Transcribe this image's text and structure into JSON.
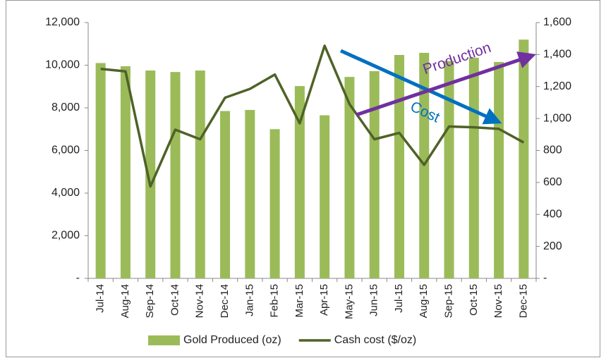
{
  "chart_data": {
    "type": "bar",
    "categories": [
      "Jul-14",
      "Aug-14",
      "Sep-14",
      "Oct-14",
      "Nov-14",
      "Dec-14",
      "Jan-15",
      "Feb-15",
      "Mar-15",
      "Apr-15",
      "May-15",
      "Jun-15",
      "Jul-15",
      "Aug-15",
      "Sep-15",
      "Oct-15",
      "Nov-15",
      "Dec-15"
    ],
    "series": [
      {
        "name": "Gold Produced (oz)",
        "type": "bar",
        "color": "#9bbb59",
        "values": [
          10100,
          9950,
          9750,
          9680,
          9750,
          7850,
          7900,
          7000,
          9020,
          7650,
          9450,
          9720,
          10480,
          10580,
          10200,
          10350,
          10150,
          11200
        ]
      },
      {
        "name": "Cash cost ($/oz)",
        "type": "line",
        "axis": "y2",
        "color": "#4f6228",
        "values": [
          1310,
          1295,
          575,
          930,
          870,
          1130,
          1185,
          1275,
          970,
          1455,
          1090,
          870,
          910,
          710,
          950,
          945,
          935,
          850
        ]
      }
    ],
    "ylim": [
      0,
      12000
    ],
    "yticks": [
      {
        "value": 0,
        "label": "-"
      },
      {
        "value": 2000,
        "label": "2,000"
      },
      {
        "value": 4000,
        "label": "4,000"
      },
      {
        "value": 6000,
        "label": "6,000"
      },
      {
        "value": 8000,
        "label": "8,000"
      },
      {
        "value": 10000,
        "label": "10,000"
      },
      {
        "value": 12000,
        "label": "12,000"
      }
    ],
    "y2lim": [
      0,
      1600
    ],
    "y2ticks": [
      {
        "value": 0,
        "label": "-"
      },
      200,
      400,
      600,
      800,
      {
        "value": 1000,
        "label": "1,000"
      },
      {
        "value": 1200,
        "label": "1,200"
      },
      {
        "value": 1400,
        "label": "1,400"
      },
      {
        "value": 1600,
        "label": "1,600"
      }
    ],
    "annotations": [
      "Production",
      "Cost"
    ],
    "legend": "bottom"
  }
}
